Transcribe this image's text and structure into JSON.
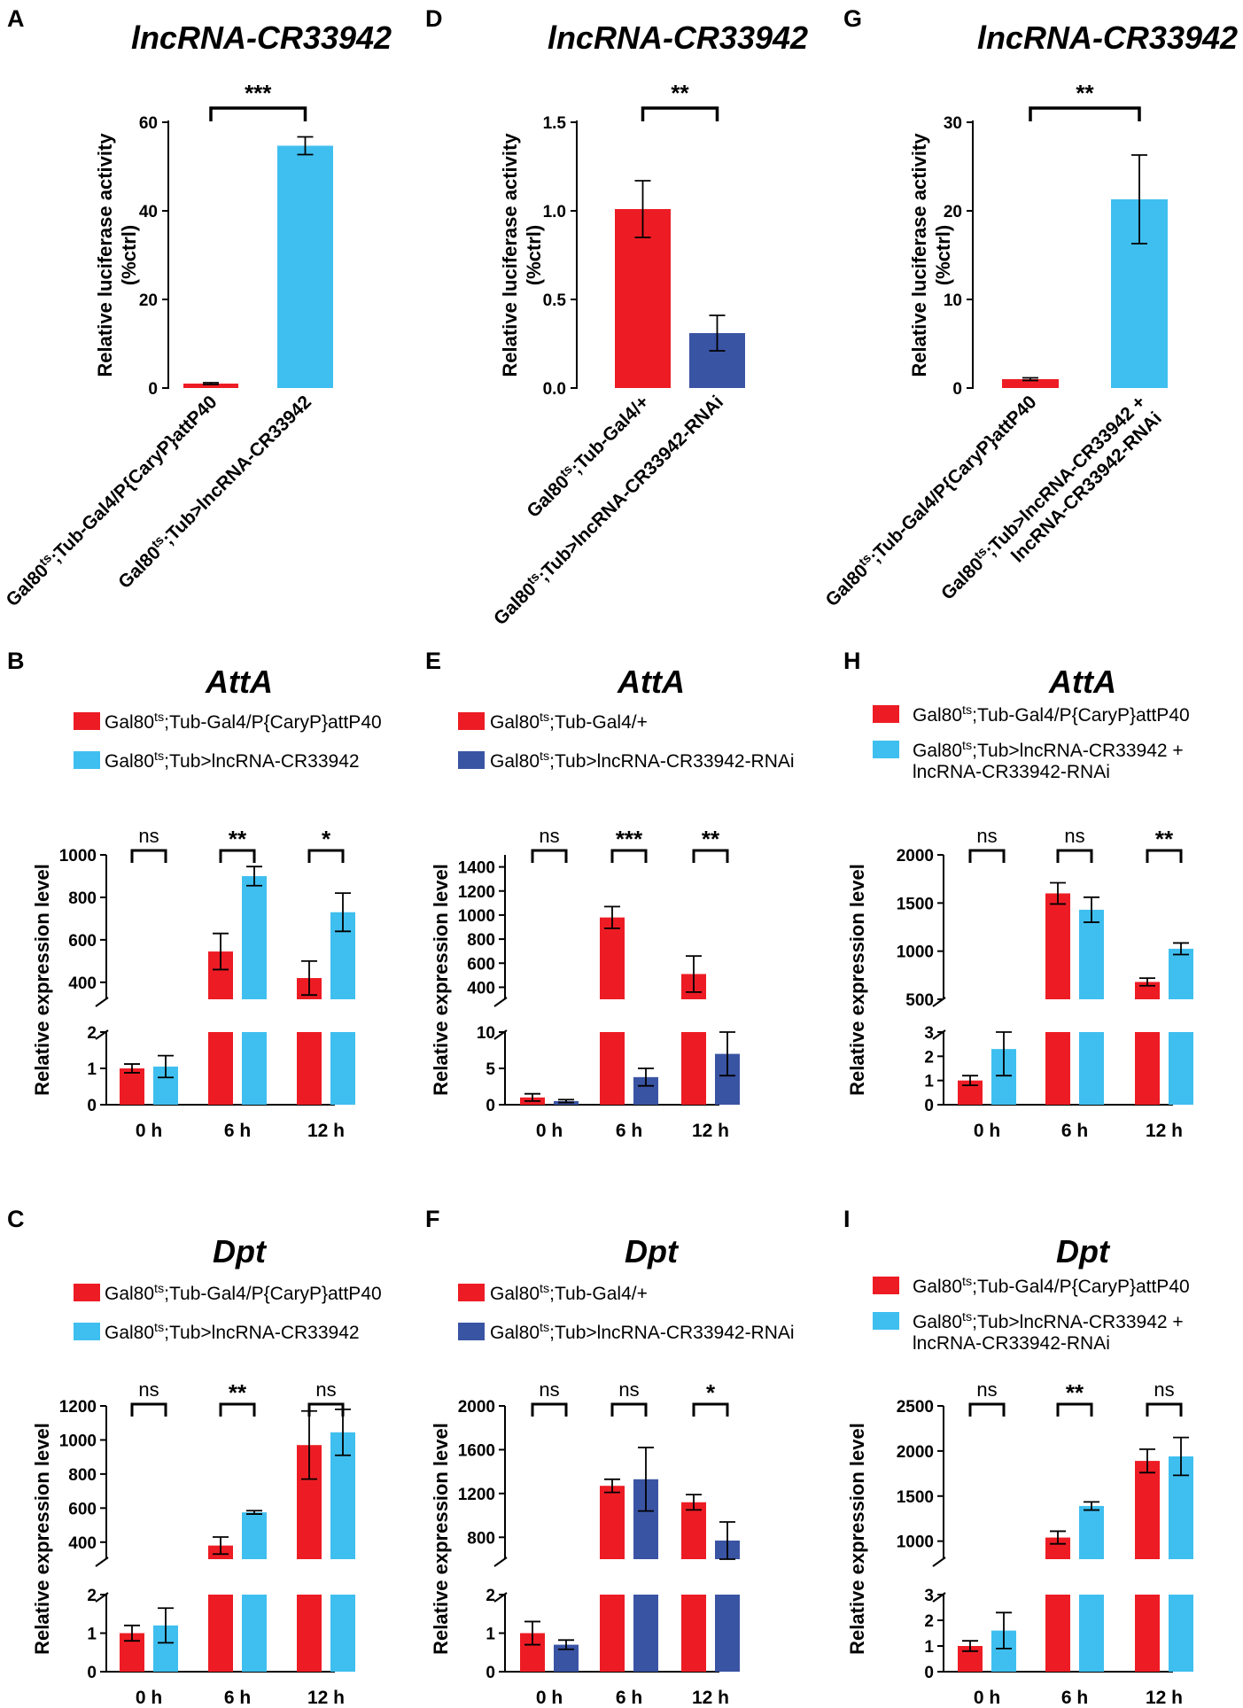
{
  "chart_data": [
    {
      "id": "A",
      "type": "bar",
      "title": "lncRNA-CR33942",
      "ylabel": [
        "Relative luciferase activity",
        "(%ctrl)"
      ],
      "ylim": [
        0,
        60
      ],
      "yticks": [
        "0",
        "20",
        "40",
        "60"
      ],
      "categories": [
        [
          "Gal80",
          "ts",
          ";Tub-Gal4/P{CaryP}attP40"
        ],
        [
          "Gal80",
          "ts",
          ";Tub>lncRNA-CR33942"
        ]
      ],
      "values": [
        1.0,
        54.7
      ],
      "errors": [
        0.2,
        2.0
      ],
      "significance": "***",
      "colors": [
        "#ed1c24",
        "#3fbfef"
      ]
    },
    {
      "id": "D",
      "type": "bar",
      "title": "lncRNA-CR33942",
      "ylabel": [
        "Relative luciferase activity",
        "(%ctrl)"
      ],
      "ylim": [
        0,
        1.5
      ],
      "yticks": [
        "0.0",
        "0.5",
        "1.0",
        "1.5"
      ],
      "categories": [
        [
          "Gal80",
          "ts",
          ";Tub-Gal4/+"
        ],
        [
          "Gal80",
          "ts",
          ";Tub>lncRNA-CR33942-RNAi"
        ]
      ],
      "values": [
        1.01,
        0.31
      ],
      "errors": [
        0.16,
        0.1
      ],
      "significance": "**",
      "colors": [
        "#ed1c24",
        "#3a54a4"
      ]
    },
    {
      "id": "G",
      "type": "bar",
      "title": "lncRNA-CR33942",
      "ylabel": [
        "Relative luciferase activity",
        "(%ctrl)"
      ],
      "ylim": [
        0,
        30
      ],
      "yticks": [
        "0",
        "10",
        "20",
        "30"
      ],
      "categories": [
        [
          "Gal80",
          "ts",
          ";Tub-Gal4/P{CaryP}attP40"
        ],
        [
          "Gal80",
          "ts",
          ";Tub>lncRNA-CR33942 +",
          "lncRNA-CR33942-RNAi"
        ]
      ],
      "values": [
        1.0,
        21.3
      ],
      "errors": [
        0.15,
        5.0
      ],
      "significance": "**",
      "colors": [
        "#ed1c24",
        "#3fbfef"
      ]
    },
    {
      "id": "B",
      "type": "bar",
      "title": "AttA",
      "ylabel": "Relative expression level",
      "categories": [
        "0 h",
        "6 h",
        "12 h"
      ],
      "series": [
        {
          "name": [
            "Gal80",
            "ts",
            ";Tub-Gal4/P{CaryP}attP40"
          ],
          "color": "#ed1c24",
          "values": [
            1.0,
            545,
            420
          ],
          "errors": [
            0.12,
            85,
            80
          ]
        },
        {
          "name": [
            "Gal80",
            "ts",
            ";Tub>lncRNA-CR33942"
          ],
          "color": "#3fbfef",
          "values": [
            1.05,
            900,
            730
          ],
          "errors": [
            0.3,
            45,
            90
          ]
        }
      ],
      "broken_axis": {
        "lower_ylim": [
          0,
          2
        ],
        "lower_ticks": [
          "0",
          "1",
          "2"
        ],
        "upper_ylim": [
          320,
          1000
        ],
        "upper_ticks": [
          "400",
          "600",
          "800",
          "1000"
        ]
      },
      "significance": [
        "ns",
        "**",
        "*"
      ]
    },
    {
      "id": "E",
      "type": "bar",
      "title": "AttA",
      "ylabel": "Relative expression level",
      "categories": [
        "0 h",
        "6 h",
        "12 h"
      ],
      "series": [
        {
          "name": [
            "Gal80",
            "ts",
            ";Tub-Gal4/+"
          ],
          "color": "#ed1c24",
          "values": [
            1.0,
            980,
            510
          ],
          "errors": [
            0.5,
            90,
            150
          ]
        },
        {
          "name": [
            "Gal80",
            "ts",
            ";Tub>lncRNA-CR33942-RNAi"
          ],
          "color": "#3a54a4",
          "values": [
            0.5,
            3.8,
            7.0
          ],
          "errors": [
            0.2,
            1.2,
            3.0
          ]
        }
      ],
      "broken_axis": {
        "lower_ylim": [
          0,
          10
        ],
        "lower_ticks": [
          "0",
          "5",
          "10"
        ],
        "upper_ylim": [
          300,
          1500
        ],
        "upper_ticks": [
          "400",
          "600",
          "800",
          "1000",
          "1200",
          "1400"
        ]
      },
      "significance": [
        "ns",
        "***",
        "**"
      ]
    },
    {
      "id": "H",
      "type": "bar",
      "title": "AttA",
      "ylabel": "Relative expression level",
      "categories": [
        "0 h",
        "6 h",
        "12 h"
      ],
      "series": [
        {
          "name": [
            "Gal80",
            "ts",
            ";Tub-Gal4/P{CaryP}attP40"
          ],
          "color": "#ed1c24",
          "values": [
            1.0,
            1600,
            680
          ],
          "errors": [
            0.2,
            110,
            40
          ]
        },
        {
          "name": [
            "Gal80",
            "ts",
            ";Tub>lncRNA-CR33942 +",
            "lncRNA-CR33942-RNAi"
          ],
          "color": "#3fbfef",
          "values": [
            2.3,
            1430,
            1025
          ],
          "errors": [
            1.1,
            130,
            60
          ]
        }
      ],
      "broken_axis": {
        "lower_ylim": [
          0,
          3
        ],
        "lower_ticks": [
          "0",
          "1",
          "2",
          "3"
        ],
        "upper_ylim": [
          500,
          2000
        ],
        "upper_ticks": [
          "500",
          "1000",
          "1500",
          "2000"
        ]
      },
      "significance": [
        "ns",
        "ns",
        "**"
      ]
    },
    {
      "id": "C",
      "type": "bar",
      "title": "Dpt",
      "ylabel": "Relative expression level",
      "categories": [
        "0 h",
        "6 h",
        "12 h"
      ],
      "series": [
        {
          "name": [
            "Gal80",
            "ts",
            ";Tub-Gal4/P{CaryP}attP40"
          ],
          "color": "#ed1c24",
          "values": [
            1.0,
            380,
            970
          ],
          "errors": [
            0.2,
            50,
            200
          ]
        },
        {
          "name": [
            "Gal80",
            "ts",
            ";Tub>lncRNA-CR33942"
          ],
          "color": "#3fbfef",
          "values": [
            1.2,
            575,
            1045
          ],
          "errors": [
            0.45,
            10,
            135
          ]
        }
      ],
      "broken_axis": {
        "lower_ylim": [
          0,
          2
        ],
        "lower_ticks": [
          "0",
          "1",
          "2"
        ],
        "upper_ylim": [
          300,
          1200
        ],
        "upper_ticks": [
          "400",
          "600",
          "800",
          "1000",
          "1200"
        ]
      },
      "significance": [
        "ns",
        "**",
        "ns"
      ]
    },
    {
      "id": "F",
      "type": "bar",
      "title": "Dpt",
      "ylabel": "Relative expression level",
      "categories": [
        "0 h",
        "6 h",
        "12 h"
      ],
      "series": [
        {
          "name": [
            "Gal80",
            "ts",
            ";Tub-Gal4/+"
          ],
          "color": "#ed1c24",
          "values": [
            1.0,
            1270,
            1120
          ],
          "errors": [
            0.3,
            60,
            70
          ]
        },
        {
          "name": [
            "Gal80",
            "ts",
            ";Tub>lncRNA-CR33942-RNAi"
          ],
          "color": "#3a54a4",
          "values": [
            0.7,
            1330,
            770
          ],
          "errors": [
            0.12,
            290,
            170
          ]
        }
      ],
      "broken_axis": {
        "lower_ylim": [
          0,
          2
        ],
        "lower_ticks": [
          "0",
          "1",
          "2"
        ],
        "upper_ylim": [
          600,
          2000
        ],
        "upper_ticks": [
          "800",
          "1200",
          "1600",
          "2000"
        ]
      },
      "significance": [
        "ns",
        "ns",
        "*"
      ]
    },
    {
      "id": "I",
      "type": "bar",
      "title": "Dpt",
      "ylabel": "Relative expression level",
      "categories": [
        "0 h",
        "6 h",
        "12 h"
      ],
      "series": [
        {
          "name": [
            "Gal80",
            "ts",
            ";Tub-Gal4/P{CaryP}attP40"
          ],
          "color": "#ed1c24",
          "values": [
            1.0,
            1040,
            1890
          ],
          "errors": [
            0.2,
            70,
            130
          ]
        },
        {
          "name": [
            "Gal80",
            "ts",
            ";Tub>lncRNA-CR33942 +",
            "lncRNA-CR33942-RNAi"
          ],
          "color": "#3fbfef",
          "values": [
            1.6,
            1390,
            1940
          ],
          "errors": [
            0.7,
            45,
            210
          ]
        }
      ],
      "broken_axis": {
        "lower_ylim": [
          0,
          3
        ],
        "lower_ticks": [
          "0",
          "1",
          "2",
          "3"
        ],
        "upper_ylim": [
          800,
          2500
        ],
        "upper_ticks": [
          "1000",
          "1500",
          "2000",
          "2500"
        ]
      },
      "significance": [
        "ns",
        "**",
        "ns"
      ]
    }
  ]
}
